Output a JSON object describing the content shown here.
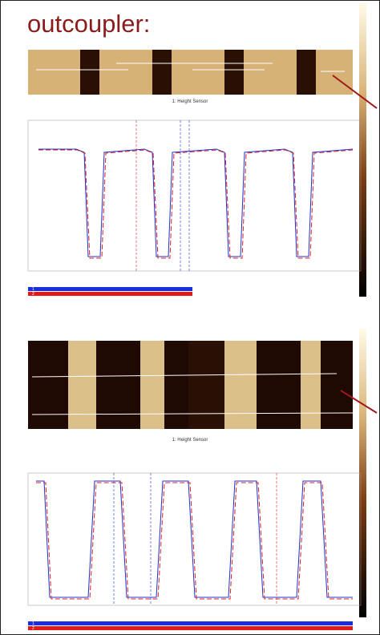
{
  "header": {
    "title": "outcoupler:"
  },
  "panels": [
    {
      "image_label": "1: Height Sensor",
      "rows": [
        "1",
        "2"
      ]
    },
    {
      "image_label": "1: Height Sensor",
      "rows": [
        "1",
        "2"
      ]
    }
  ]
}
